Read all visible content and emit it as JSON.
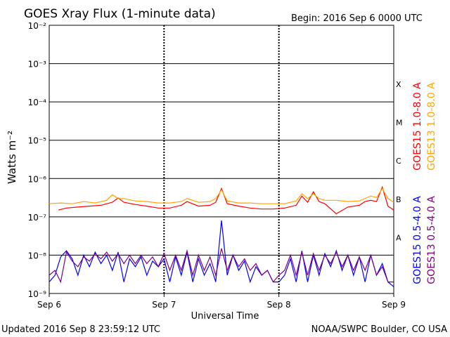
{
  "title": "GOES Xray Flux (1-minute data)",
  "begin_label": "Begin:  2016 Sep 6 0000 UTC",
  "updated_label": "Updated 2016 Sep  8 23:59:12 UTC",
  "source_label": "NOAA/SWPC Boulder, CO USA",
  "chart_data": {
    "type": "line",
    "title": "GOES Xray Flux (1-minute data)",
    "xlabel": "Universal Time",
    "ylabel": "Watts m⁻²",
    "y_scale": "log",
    "ylim": [
      1e-09,
      0.01
    ],
    "y_ticks": [
      {
        "value": 0.01,
        "label": "10⁻²"
      },
      {
        "value": 0.001,
        "label": "10⁻³"
      },
      {
        "value": 0.0001,
        "label": "10⁻⁴"
      },
      {
        "value": 1e-05,
        "label": "10⁻⁵"
      },
      {
        "value": 1e-06,
        "label": "10⁻⁶"
      },
      {
        "value": 1e-07,
        "label": "10⁻⁷"
      },
      {
        "value": 1e-08,
        "label": "10⁻⁸"
      },
      {
        "value": 1e-09,
        "label": "10⁻⁹"
      }
    ],
    "x_unit": "days since Sep 6 00:00 UTC",
    "xlim": [
      0,
      3
    ],
    "x_ticks": [
      {
        "value": 0,
        "label": "Sep 6"
      },
      {
        "value": 1,
        "label": "Sep 7"
      },
      {
        "value": 2,
        "label": "Sep 8"
      },
      {
        "value": 3,
        "label": "Sep 9"
      }
    ],
    "flare_classes": [
      {
        "label": "X",
        "value": 0.0003
      },
      {
        "label": "M",
        "value": 3e-05
      },
      {
        "label": "C",
        "value": 3e-06
      },
      {
        "label": "B",
        "value": 3e-07
      },
      {
        "label": "A",
        "value": 3e-08
      }
    ],
    "grid": true,
    "legend_position": "right",
    "series": [
      {
        "name": "GOES15 1.0-8.0 A",
        "color": "#ff0000",
        "x": [
          0.08,
          0.15,
          0.25,
          0.35,
          0.45,
          0.55,
          0.6,
          0.65,
          0.75,
          0.85,
          0.95,
          1.05,
          1.15,
          1.2,
          1.3,
          1.4,
          1.45,
          1.5,
          1.55,
          1.65,
          1.75,
          1.85,
          1.95,
          2.05,
          2.15,
          2.2,
          2.25,
          2.3,
          2.35,
          2.4,
          2.5,
          2.6,
          2.7,
          2.75,
          2.8,
          2.85,
          2.9,
          2.95,
          3.0
        ],
        "values": [
          1.5e-07,
          1.7e-07,
          1.8e-07,
          1.9e-07,
          2e-07,
          2.4e-07,
          3.1e-07,
          2.4e-07,
          2.1e-07,
          1.9e-07,
          1.7e-07,
          1.7e-07,
          2e-07,
          2.5e-07,
          1.9e-07,
          2e-07,
          2.4e-07,
          5.5e-07,
          2.2e-07,
          1.9e-07,
          1.7e-07,
          1.6e-07,
          1.6e-07,
          1.7e-07,
          2e-07,
          3.5e-07,
          2.4e-07,
          4.5e-07,
          2.5e-07,
          2.2e-07,
          1.2e-07,
          1.8e-07,
          2e-07,
          2.5e-07,
          2.7e-07,
          2.5e-07,
          6e-07,
          1.9e-07,
          1.5e-07
        ]
      },
      {
        "name": "GOES13 1.0-8.0 A",
        "color": "#ffa500",
        "x": [
          0,
          0.1,
          0.2,
          0.3,
          0.4,
          0.5,
          0.55,
          0.6,
          0.65,
          0.75,
          0.85,
          0.95,
          1.05,
          1.15,
          1.2,
          1.3,
          1.4,
          1.45,
          1.5,
          1.55,
          1.65,
          1.75,
          1.85,
          1.95,
          2.05,
          2.15,
          2.2,
          2.25,
          2.3,
          2.35,
          2.4,
          2.5,
          2.6,
          2.7,
          2.8,
          2.85,
          2.9,
          2.95,
          3.0
        ],
        "values": [
          2.2e-07,
          2.3e-07,
          2.2e-07,
          2.5e-07,
          2.3e-07,
          2.7e-07,
          3.8e-07,
          3e-07,
          3e-07,
          2.6e-07,
          2.5e-07,
          2.3e-07,
          2.3e-07,
          2.5e-07,
          3e-07,
          2.4e-07,
          2.5e-07,
          3e-07,
          5e-07,
          2.6e-07,
          2.3e-07,
          2.3e-07,
          2.2e-07,
          2.2e-07,
          2.2e-07,
          2.6e-07,
          4e-07,
          3e-07,
          4e-07,
          3e-07,
          2.7e-07,
          2.7e-07,
          2.5e-07,
          2.6e-07,
          3.5e-07,
          3.2e-07,
          5.5e-07,
          3e-07,
          2.4e-07
        ]
      },
      {
        "name": "GOES15 0.5-4.0 A",
        "color": "#0000ff",
        "x": [
          0,
          0.05,
          0.1,
          0.15,
          0.2,
          0.25,
          0.3,
          0.35,
          0.4,
          0.45,
          0.5,
          0.55,
          0.6,
          0.65,
          0.7,
          0.75,
          0.8,
          0.85,
          0.9,
          0.95,
          1.0,
          1.05,
          1.1,
          1.15,
          1.2,
          1.25,
          1.3,
          1.35,
          1.4,
          1.45,
          1.5,
          1.55,
          1.6,
          1.65,
          1.7,
          1.75,
          1.8,
          1.85,
          1.9,
          1.95,
          2.0,
          2.05,
          2.1,
          2.15,
          2.2,
          2.25,
          2.3,
          2.35,
          2.4,
          2.45,
          2.5,
          2.55,
          2.6,
          2.65,
          2.7,
          2.75,
          2.8,
          2.85,
          2.9,
          2.95,
          3.0
        ],
        "values": [
          2e-09,
          3e-09,
          9e-09,
          1.3e-08,
          8e-09,
          3e-09,
          1e-08,
          5e-09,
          1.2e-08,
          6e-09,
          1e-08,
          4e-09,
          1.2e-08,
          2e-09,
          8e-09,
          5e-09,
          9e-09,
          3e-09,
          7e-09,
          5e-09,
          8e-09,
          2e-09,
          9e-09,
          3e-09,
          1.2e-08,
          2e-09,
          8e-09,
          3e-09,
          6e-09,
          2e-09,
          8e-08,
          3e-09,
          1e-08,
          4e-09,
          7e-09,
          2e-09,
          5e-09,
          3e-09,
          4e-09,
          2e-09,
          2e-09,
          3e-09,
          8e-09,
          2e-09,
          1.3e-08,
          2e-09,
          1e-08,
          3e-09,
          1.1e-08,
          5e-09,
          1.3e-08,
          4e-09,
          1e-08,
          3e-09,
          9e-09,
          2e-09,
          1e-08,
          3e-09,
          6e-09,
          2e-09,
          1.5e-09
        ]
      },
      {
        "name": "GOES13 0.5-4.0 A",
        "color": "#800080",
        "x": [
          0,
          0.05,
          0.1,
          0.15,
          0.2,
          0.25,
          0.3,
          0.35,
          0.4,
          0.45,
          0.5,
          0.55,
          0.6,
          0.65,
          0.7,
          0.75,
          0.8,
          0.85,
          0.9,
          0.95,
          1.0,
          1.05,
          1.1,
          1.15,
          1.2,
          1.25,
          1.3,
          1.35,
          1.4,
          1.45,
          1.5,
          1.55,
          1.6,
          1.65,
          1.7,
          1.75,
          1.8,
          1.85,
          1.9,
          1.95,
          2.0,
          2.05,
          2.1,
          2.15,
          2.2,
          2.25,
          2.3,
          2.35,
          2.4,
          2.45,
          2.5,
          2.55,
          2.6,
          2.65,
          2.7,
          2.75,
          2.8,
          2.85,
          2.9,
          2.95,
          3.0
        ],
        "values": [
          3e-09,
          4e-09,
          2e-09,
          1.2e-08,
          7e-09,
          5e-09,
          9e-09,
          7e-09,
          1.1e-08,
          8e-09,
          1.2e-08,
          7e-09,
          1.1e-08,
          6e-09,
          1e-08,
          6e-09,
          1e-08,
          6e-09,
          9e-09,
          5e-09,
          1.1e-08,
          4e-09,
          1e-08,
          4e-09,
          1.3e-08,
          3e-09,
          1e-08,
          4e-09,
          9e-09,
          3e-09,
          1.5e-08,
          4e-09,
          1e-08,
          5e-09,
          8e-09,
          4e-09,
          6e-09,
          3e-09,
          4e-09,
          2e-09,
          3e-09,
          4e-09,
          1e-08,
          3e-09,
          1.2e-08,
          3e-09,
          1.1e-08,
          4e-09,
          1e-08,
          6e-09,
          1.2e-08,
          5e-09,
          1e-08,
          4e-09,
          9e-09,
          4e-09,
          1e-08,
          3e-09,
          5e-09,
          2e-09,
          2e-09
        ]
      }
    ]
  }
}
